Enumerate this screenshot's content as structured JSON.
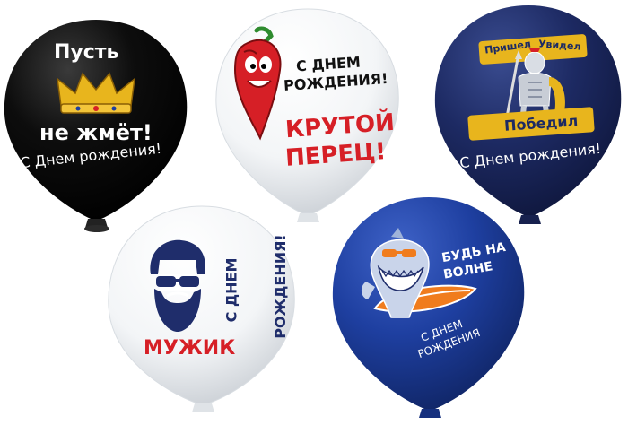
{
  "colors": {
    "black_balloon": "#0d0d0d",
    "white_balloon": "#f4f6f8",
    "navy_balloon": "#1d2a63",
    "blue_balloon": "#1e3fa0",
    "gold": "#e8b51d",
    "red": "#d61f26",
    "orange": "#f07c1d",
    "navy_text": "#1f2d6b"
  },
  "balloons": [
    {
      "name": "black-crown-balloon",
      "lines": {
        "top": "Пусть",
        "middle": "не жмёт!",
        "bottom": "С Днем рождения!"
      },
      "icon": "crown-icon"
    },
    {
      "name": "white-pepper-balloon",
      "lines": {
        "greeting_1": "С ДНЕМ",
        "greeting_2": "РОЖДЕНИЯ!",
        "slogan_1": "КРУТОЙ",
        "slogan_2": "ПЕРЕЦ!"
      },
      "icon": "chili-pepper-icon"
    },
    {
      "name": "navy-gladiator-balloon",
      "lines": {
        "ribbon_left": "Пришел",
        "ribbon_right": "Увидел",
        "banner": "Победил",
        "bottom": "С Днем рождения!"
      },
      "icon": "gladiator-icon"
    },
    {
      "name": "white-beard-balloon",
      "lines": {
        "vertical_1": "С ДНЕМ",
        "vertical_2": "РОЖДЕНИЯ!",
        "bottom": "МУЖИК"
      },
      "icon": "bearded-man-icon"
    },
    {
      "name": "blue-shark-balloon",
      "lines": {
        "slogan_1": "БУДЬ НА",
        "slogan_2": "ВОЛНЕ",
        "greeting_1": "С ДНЕМ",
        "greeting_2": "РОЖДЕНИЯ"
      },
      "icon": "shark-icon"
    }
  ]
}
